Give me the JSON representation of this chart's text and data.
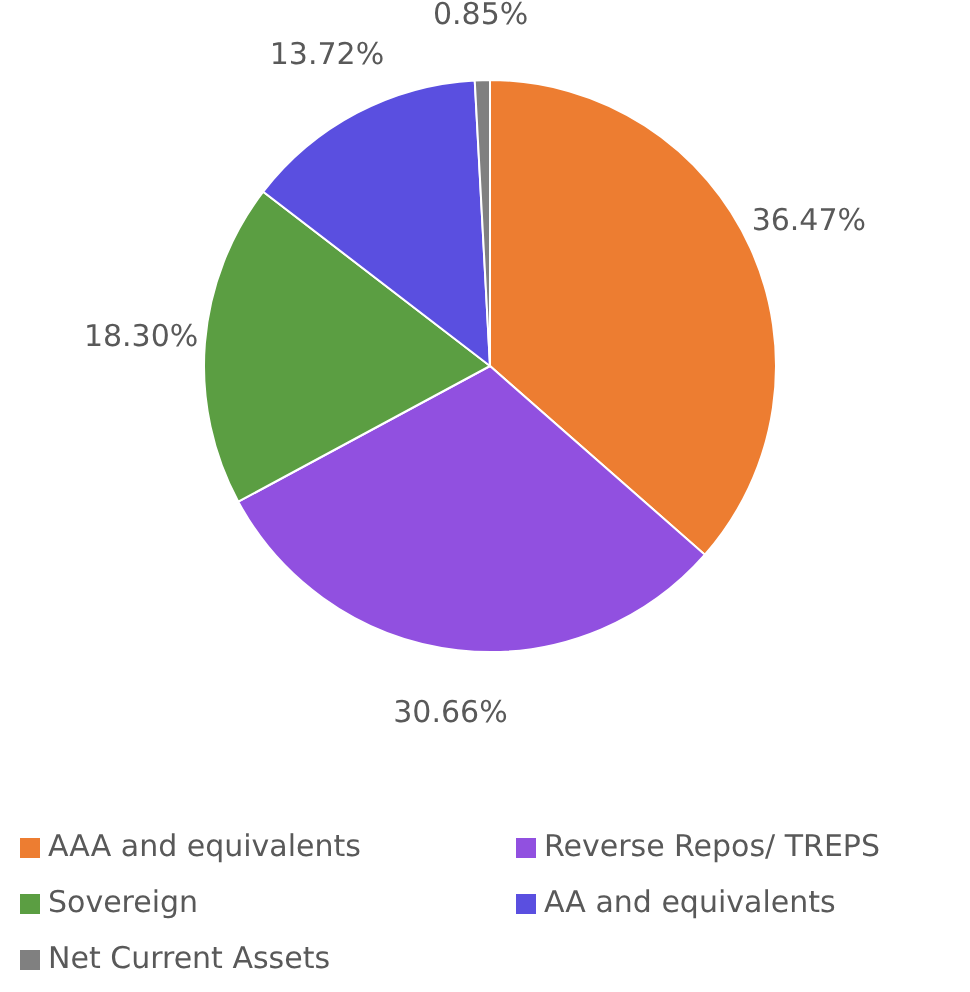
{
  "chart_data": {
    "type": "pie",
    "categories": [
      "AAA and equivalents",
      "Reverse Repos/ TREPS",
      "Sovereign",
      "AA and equivalents",
      "Net Current Assets"
    ],
    "values": [
      36.47,
      30.66,
      18.3,
      13.72,
      0.85
    ],
    "colors": [
      "#ed7d31",
      "#9150e0",
      "#5b9e42",
      "#5a4fe0",
      "#808080"
    ],
    "value_labels": [
      "36.47%",
      "30.66%",
      "18.30%",
      "13.72%",
      "0.85%"
    ],
    "legend": "bottom"
  }
}
